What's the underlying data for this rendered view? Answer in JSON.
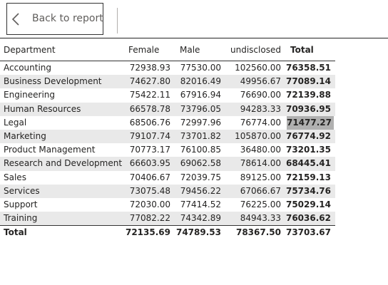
{
  "nav": {
    "back_label": "Back to report"
  },
  "table": {
    "headers": [
      "Department",
      "Female",
      "Male",
      "undisclosed",
      "Total"
    ],
    "rows": [
      [
        "Accounting",
        "72938.93",
        "77530.00",
        "102560.00",
        "76358.51"
      ],
      [
        "Business Development",
        "74627.80",
        "82016.49",
        "49956.67",
        "77089.14"
      ],
      [
        "Engineering",
        "75422.11",
        "67916.94",
        "76690.00",
        "72139.88"
      ],
      [
        "Human Resources",
        "66578.78",
        "73796.05",
        "94283.33",
        "70936.95"
      ],
      [
        "Legal",
        "68506.76",
        "72997.96",
        "76774.00",
        "71477.27"
      ],
      [
        "Marketing",
        "79107.74",
        "73701.82",
        "105870.00",
        "76774.92"
      ],
      [
        "Product Management",
        "70773.17",
        "76100.85",
        "36480.00",
        "73201.35"
      ],
      [
        "Research and Development",
        "66603.95",
        "69062.58",
        "78614.00",
        "68445.41"
      ],
      [
        "Sales",
        "70406.67",
        "72039.75",
        "89125.00",
        "72159.13"
      ],
      [
        "Services",
        "73075.48",
        "79456.22",
        "67066.67",
        "75734.76"
      ],
      [
        "Support",
        "72030.00",
        "77414.52",
        "76225.00",
        "75029.14"
      ],
      [
        "Training",
        "77082.22",
        "74342.89",
        "84943.33",
        "76036.62"
      ]
    ],
    "total": [
      "Total",
      "72135.69",
      "74789.53",
      "78367.50",
      "73703.67"
    ],
    "highlight_color": "#b0b0b0",
    "stripe_color": "#e9e9e9"
  }
}
